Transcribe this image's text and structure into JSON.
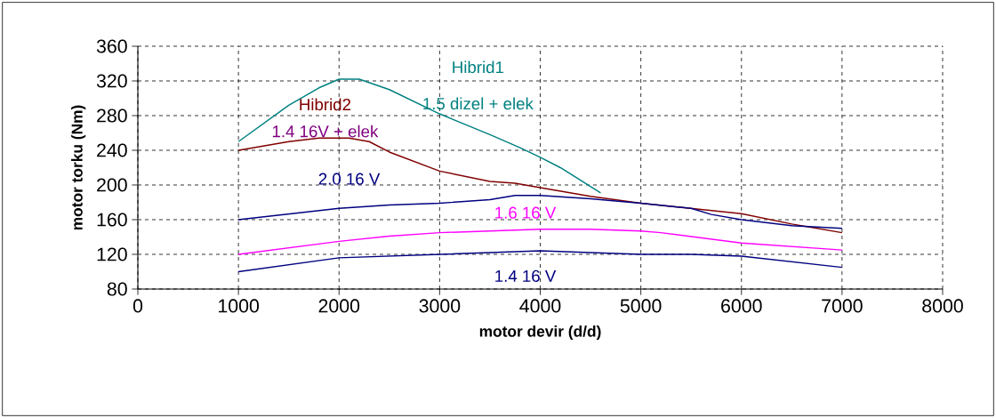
{
  "chart_data": {
    "type": "line",
    "xlabel": "motor devir (d/d)",
    "ylabel": "motor torku (Nm)",
    "xlim": [
      0,
      8000
    ],
    "xticks": [
      0,
      1000,
      2000,
      3000,
      4000,
      5000,
      6000,
      7000,
      8000
    ],
    "ylim": [
      80,
      360
    ],
    "yticks": [
      80,
      120,
      160,
      200,
      240,
      280,
      320,
      360
    ],
    "grid": true,
    "legend": false,
    "marker": "none",
    "line_style": "solid",
    "annotations": [
      "1.5 dizel + elek",
      "1.4 16V + elek"
    ],
    "series": [
      {
        "name": "Hibrid1",
        "color": "#008080",
        "x": [
          1000,
          1500,
          1800,
          2000,
          2200,
          2500,
          3000,
          3500,
          3800,
          4000,
          4200,
          4600
        ],
        "values": [
          250,
          292,
          312,
          322,
          322,
          310,
          282,
          258,
          243,
          232,
          220,
          191
        ]
      },
      {
        "name": "Hibrid2",
        "color": "#800000",
        "x": [
          1000,
          1500,
          1800,
          2100,
          2300,
          2500,
          3000,
          3500,
          3750,
          4000,
          4500,
          5000,
          6000,
          6500,
          7000
        ],
        "values": [
          240,
          250,
          254,
          254,
          250,
          238,
          216,
          204,
          202,
          197,
          187,
          179,
          167,
          155,
          145
        ]
      },
      {
        "name": "2.0 16 V",
        "color": "#000080",
        "x": [
          1000,
          2000,
          2500,
          3000,
          3500,
          3750,
          4000,
          4500,
          5000,
          5500,
          5700,
          6000,
          6500,
          7000
        ],
        "values": [
          160,
          173,
          177,
          179,
          183,
          188,
          188,
          184,
          179,
          173,
          166,
          160,
          153,
          150
        ]
      },
      {
        "name": "1.6 16 V",
        "color": "#FF00FF",
        "x": [
          1000,
          2000,
          2500,
          3000,
          4000,
          4500,
          5000,
          5200,
          6000,
          7000
        ],
        "values": [
          120,
          135,
          141,
          145,
          149,
          149,
          147,
          145,
          133,
          125
        ]
      },
      {
        "name": "1.4 16 V",
        "color": "#000080",
        "x": [
          1000,
          2000,
          3000,
          4000,
          5000,
          5500,
          6000,
          7000
        ],
        "values": [
          100,
          116,
          120,
          124,
          120,
          120,
          118,
          105
        ]
      }
    ]
  }
}
